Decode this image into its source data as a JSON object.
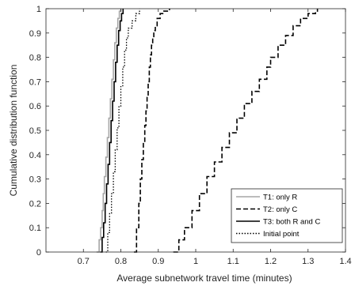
{
  "chart_data": {
    "type": "line",
    "xlabel": "Average subnetwork travel time (minutes)",
    "ylabel": "Cumulative distribution function",
    "xlim": [
      0.6,
      1.4
    ],
    "ylim": [
      0,
      1
    ],
    "xticks": [
      0.7,
      0.8,
      0.9,
      1,
      1.1,
      1.2,
      1.3,
      1.4
    ],
    "xtick_labels": [
      "0.7",
      "0.8",
      "0.9",
      "1",
      "1.1",
      "1.2",
      "1.3",
      "1.4"
    ],
    "yticks": [
      0,
      0.1,
      0.2,
      0.3,
      0.4,
      0.5,
      0.6,
      0.7,
      0.8,
      0.9,
      1
    ],
    "ytick_labels": [
      "0",
      "0.1",
      "0.2",
      "0.3",
      "0.4",
      "0.5",
      "0.6",
      "0.7",
      "0.8",
      "0.9",
      "1"
    ],
    "grid": false,
    "legend_position": "bottom-right",
    "series": [
      {
        "name": "T1: only R",
        "color": "#a6a6a6",
        "dash": "solid",
        "x": [
          0.735,
          0.742,
          0.746,
          0.75,
          0.753,
          0.756,
          0.76,
          0.764,
          0.768,
          0.772,
          0.776,
          0.78,
          0.784,
          0.788,
          0.792,
          0.796,
          0.8
        ],
        "y": [
          0,
          0.05,
          0.1,
          0.17,
          0.24,
          0.31,
          0.39,
          0.47,
          0.55,
          0.63,
          0.71,
          0.79,
          0.86,
          0.92,
          0.96,
          0.99,
          1
        ]
      },
      {
        "name": "T2: only C",
        "color": "#000000",
        "dash": "dashed",
        "x_series_note": "",
        "x": [
          0.94,
          0.955,
          0.97,
          0.99,
          1.01,
          1.03,
          1.05,
          1.07,
          1.09,
          1.11,
          1.13,
          1.15,
          1.17,
          1.19,
          1.2,
          1.22,
          1.24,
          1.26,
          1.28,
          1.3,
          1.32,
          1.325
        ],
        "y": [
          0,
          0.05,
          0.1,
          0.17,
          0.24,
          0.31,
          0.37,
          0.43,
          0.49,
          0.55,
          0.61,
          0.66,
          0.71,
          0.76,
          0.8,
          0.85,
          0.89,
          0.93,
          0.96,
          0.98,
          0.99,
          1
        ]
      },
      {
        "name": "T2: only C",
        "color": "#000000",
        "dash": "dashed",
        "x": [
          0.835,
          0.842,
          0.848,
          0.852,
          0.856,
          0.86,
          0.864,
          0.867,
          0.87,
          0.873,
          0.876,
          0.879,
          0.882,
          0.885,
          0.888,
          0.892,
          0.897,
          0.905,
          0.915,
          0.93
        ],
        "y": [
          0,
          0.1,
          0.2,
          0.3,
          0.38,
          0.45,
          0.52,
          0.58,
          0.64,
          0.7,
          0.76,
          0.81,
          0.85,
          0.88,
          0.91,
          0.93,
          0.96,
          0.98,
          0.99,
          1
        ]
      },
      {
        "name": "T3: both R and C",
        "color": "#000000",
        "dash": "solid",
        "x": [
          0.745,
          0.75,
          0.754,
          0.758,
          0.762,
          0.766,
          0.77,
          0.774,
          0.778,
          0.782,
          0.786,
          0.79,
          0.794,
          0.798,
          0.802,
          0.806
        ],
        "y": [
          0,
          0.06,
          0.12,
          0.2,
          0.28,
          0.36,
          0.45,
          0.54,
          0.62,
          0.7,
          0.78,
          0.85,
          0.91,
          0.95,
          0.98,
          1
        ]
      },
      {
        "name": "Initial point",
        "color": "#000000",
        "dash": "dotted",
        "x": [
          0.76,
          0.765,
          0.77,
          0.775,
          0.78,
          0.785,
          0.79,
          0.795,
          0.8,
          0.805,
          0.81,
          0.815,
          0.82,
          0.83,
          0.84,
          0.85
        ],
        "y": [
          0,
          0.08,
          0.16,
          0.24,
          0.33,
          0.42,
          0.51,
          0.6,
          0.68,
          0.76,
          0.83,
          0.88,
          0.92,
          0.95,
          0.98,
          1
        ]
      }
    ],
    "legend": [
      {
        "label": "T1: only R",
        "color": "#a6a6a6",
        "dash": "solid"
      },
      {
        "label": "T2: only C",
        "color": "#000000",
        "dash": "dashed"
      },
      {
        "label": "T3: both R and C",
        "color": "#000000",
        "dash": "solid"
      },
      {
        "label": "Initial point",
        "color": "#000000",
        "dash": "dotted"
      }
    ]
  }
}
